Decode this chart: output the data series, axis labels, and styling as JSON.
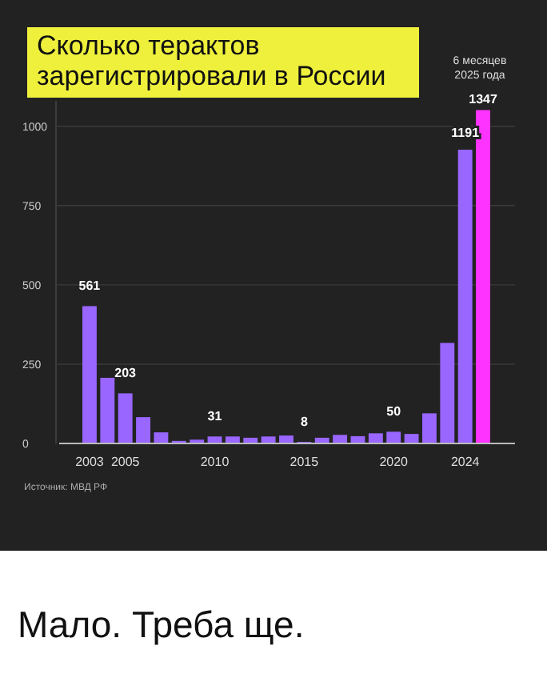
{
  "chart_data": {
    "type": "bar",
    "title": "Сколько терактов\nзарегистрировали в России",
    "categories": [
      "2003",
      null,
      "2005",
      null,
      null,
      null,
      null,
      "2010",
      null,
      null,
      null,
      null,
      "2015",
      null,
      null,
      null,
      null,
      "2020",
      null,
      null,
      null,
      "2024",
      null
    ],
    "values": [
      433,
      207,
      158,
      83,
      35,
      8,
      12,
      22,
      22,
      18,
      22,
      25,
      5,
      18,
      27,
      23,
      32,
      37,
      30,
      95,
      317,
      926,
      1051
    ],
    "colors": [
      "#9966ff",
      "#9966ff",
      "#9966ff",
      "#9966ff",
      "#9966ff",
      "#9966ff",
      "#9966ff",
      "#9966ff",
      "#9966ff",
      "#9966ff",
      "#9966ff",
      "#9966ff",
      "#9966ff",
      "#9966ff",
      "#9966ff",
      "#9966ff",
      "#9966ff",
      "#9966ff",
      "#9966ff",
      "#9966ff",
      "#9966ff",
      "#9966ff",
      "#ff33ff"
    ],
    "ylim": [
      0,
      1080
    ],
    "yticks": [
      0,
      250,
      500,
      750,
      1000
    ],
    "grid": "y",
    "annotations": [
      {
        "text": "561",
        "x": "2003",
        "y": 433
      },
      {
        "text": "203",
        "x": "2005",
        "y": 158
      },
      {
        "text": "31",
        "x": "2010",
        "y": 22
      },
      {
        "text": "8",
        "x": "2015",
        "y": 5
      },
      {
        "text": "50",
        "x": "2020",
        "y": 37
      },
      {
        "text": "1191",
        "x": "2024",
        "y": 926
      },
      {
        "text": "1347",
        "y": 1051
      },
      "6 месяцев\n2025 года",
      "Источник: МВД РФ",
      "Мало. Треба ще."
    ]
  }
}
